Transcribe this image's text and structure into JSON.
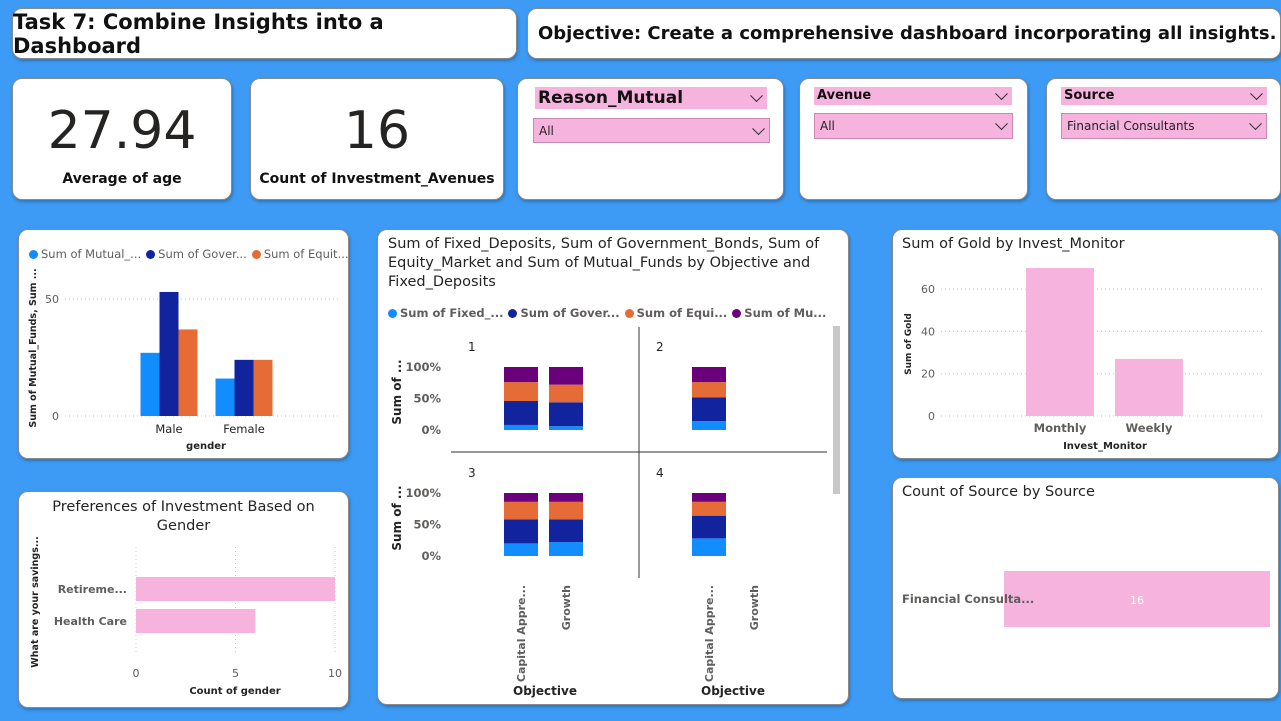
{
  "header": {
    "task_title": "Task 7: Combine Insights into a Dashboard",
    "objective": "Objective: Create a comprehensive dashboard incorporating all insights."
  },
  "kpis": [
    {
      "value": "27.94",
      "label": "Average of age"
    },
    {
      "value": "16",
      "label": "Count of Investment_Avenues"
    }
  ],
  "slicers": {
    "reason": {
      "title": "Reason_Mutual",
      "value": "All"
    },
    "avenue": {
      "title": "Avenue",
      "value": "All"
    },
    "source": {
      "title": "Source",
      "value": "Financial Consultants"
    }
  },
  "colors": {
    "blue": "#118dff",
    "navy": "#12239e",
    "orange": "#e66c37",
    "purple": "#6b007b",
    "pink": "#f5b3dd"
  },
  "gender_chart": {
    "legend": [
      "Sum of Mutual_...",
      "Sum of Gover...",
      "Sum of Equit..."
    ],
    "y_axis_label": "Sum of Mutual_Funds, Sum ...",
    "x_axis_label": "gender",
    "y_ticks": [
      "50",
      "0"
    ]
  },
  "preferences_chart": {
    "title": "Preferences of Investment Based on Gender",
    "y_axis_label": "What are your savings...",
    "x_axis_label": "Count of gender",
    "x_ticks": [
      "0",
      "5",
      "10"
    ]
  },
  "objective_chart": {
    "title": "Sum of Fixed_Deposits, Sum of Government_Bonds, Sum of Equity_Market and Sum of Mutual_Funds by Objective and Fixed_Deposits",
    "legend": [
      "Sum of Fixed_...",
      "Sum of Gover...",
      "Sum of Equi...",
      "Sum of Mu..."
    ],
    "y_axis_label": "Sum of ...",
    "x_axis_label": "Objective",
    "y_ticks": [
      "100%",
      "50%",
      "0%"
    ]
  },
  "gold_chart": {
    "title": "Sum of Gold by Invest_Monitor",
    "y_axis_label": "Sum of Gold",
    "x_axis_label": "Invest_Monitor",
    "y_ticks": [
      "60",
      "40",
      "20",
      "0"
    ]
  },
  "source_chart": {
    "title": "Count of Source by Source"
  },
  "chart_data": [
    {
      "type": "bar",
      "xlabel": "gender",
      "ylabel": "Sum of Mutual_Funds, Sum ...",
      "categories": [
        "Male",
        "Female"
      ],
      "series": [
        {
          "name": "Sum of Mutual_...",
          "values": [
            27,
            16
          ]
        },
        {
          "name": "Sum of Gover...",
          "values": [
            53,
            24
          ]
        },
        {
          "name": "Sum of Equit...",
          "values": [
            37,
            24
          ]
        }
      ],
      "ylim": [
        0,
        60
      ],
      "legend": "top"
    },
    {
      "type": "bar",
      "orientation": "horizontal",
      "title": "Preferences of Investment Based on Gender",
      "xlabel": "Count of gender",
      "ylabel": "What are your savings...",
      "categories": [
        "Retireme...",
        "Health Care"
      ],
      "values": [
        10,
        6
      ],
      "xlim": [
        0,
        10
      ]
    },
    {
      "type": "bar",
      "stacked": "100%",
      "title": "Sum of Fixed_Deposits, Sum of Government_Bonds, Sum of Equity_Market and Sum of Mutual_Funds by Objective and Fixed_Deposits",
      "xlabel": "Objective",
      "ylabel": "Sum of ...",
      "panel_labels": [
        "1",
        "2",
        "3",
        "4"
      ],
      "categories": [
        "Capital Appre...",
        "Growth"
      ],
      "series_names": [
        "Sum of Fixed_...",
        "Sum of Gover...",
        "Sum of Equi...",
        "Sum of Mu..."
      ],
      "panels": [
        {
          "label": "1",
          "bars": [
            {
              "category": "Capital Appre...",
              "shares": [
                8,
                38,
                30,
                24
              ]
            },
            {
              "category": "Growth",
              "shares": [
                6,
                38,
                28,
                28
              ]
            }
          ]
        },
        {
          "label": "2",
          "bars": [
            {
              "category": "Capital Appre...",
              "shares": [
                14,
                38,
                24,
                24
              ]
            }
          ]
        },
        {
          "label": "3",
          "bars": [
            {
              "category": "Capital Appre...",
              "shares": [
                20,
                38,
                28,
                14
              ]
            },
            {
              "category": "Growth",
              "shares": [
                22,
                36,
                28,
                14
              ]
            }
          ]
        },
        {
          "label": "4",
          "bars": [
            {
              "category": "Capital Appre...",
              "shares": [
                28,
                36,
                22,
                14
              ]
            }
          ]
        }
      ],
      "ylim": [
        0,
        100
      ],
      "legend": "top"
    },
    {
      "type": "bar",
      "title": "Sum of Gold by Invest_Monitor",
      "xlabel": "Invest_Monitor",
      "ylabel": "Sum of Gold",
      "categories": [
        "Monthly",
        "Weekly"
      ],
      "values": [
        70,
        27
      ],
      "ylim": [
        0,
        70
      ]
    },
    {
      "type": "bar",
      "orientation": "horizontal",
      "title": "Count of Source by Source",
      "categories": [
        "Financial Consulta..."
      ],
      "values": [
        16
      ],
      "data_labels": [
        "16"
      ]
    }
  ]
}
